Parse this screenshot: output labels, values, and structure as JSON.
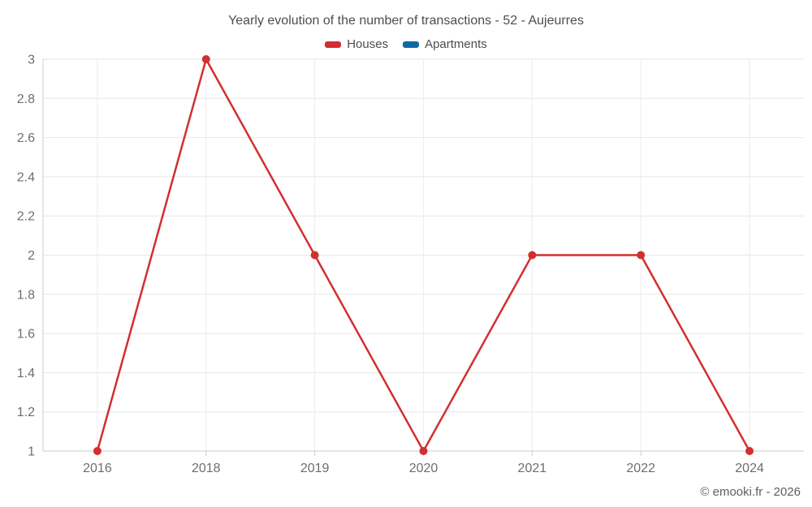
{
  "title": "Yearly evolution of the number of transactions - 52 - Aujeurres",
  "legend": [
    {
      "label": "Houses",
      "color": "#d32f2f"
    },
    {
      "label": "Apartments",
      "color": "#1269a0"
    }
  ],
  "copyright": "© emooki.fr - 2026",
  "colors": {
    "houses_red": "#d32f2f",
    "apartments_blue": "#1269a0",
    "grid_line": "#e6e6e6",
    "axis_line": "#cccccc",
    "axis_label": "#6e6e6e",
    "title_text": "#4d4d4d"
  },
  "chart_data": {
    "type": "line",
    "title": "Yearly evolution of the number of transactions - 52 - Aujeurres",
    "categories": [
      "2016",
      "2018",
      "2019",
      "2020",
      "2021",
      "2022",
      "2024"
    ],
    "series": [
      {
        "name": "Houses",
        "color": "#d32f2f",
        "values": [
          1,
          3,
          2,
          1,
          2,
          2,
          1
        ]
      },
      {
        "name": "Apartments",
        "color": "#1269a0",
        "values": []
      }
    ],
    "xlabel": "",
    "ylabel": "",
    "ylim": [
      1,
      3
    ],
    "yticks": [
      1,
      1.2,
      1.4,
      1.6,
      1.8,
      2,
      2.2,
      2.4,
      2.6,
      2.8,
      3
    ],
    "grid": true,
    "legend_position": "top",
    "marker": "circle"
  }
}
